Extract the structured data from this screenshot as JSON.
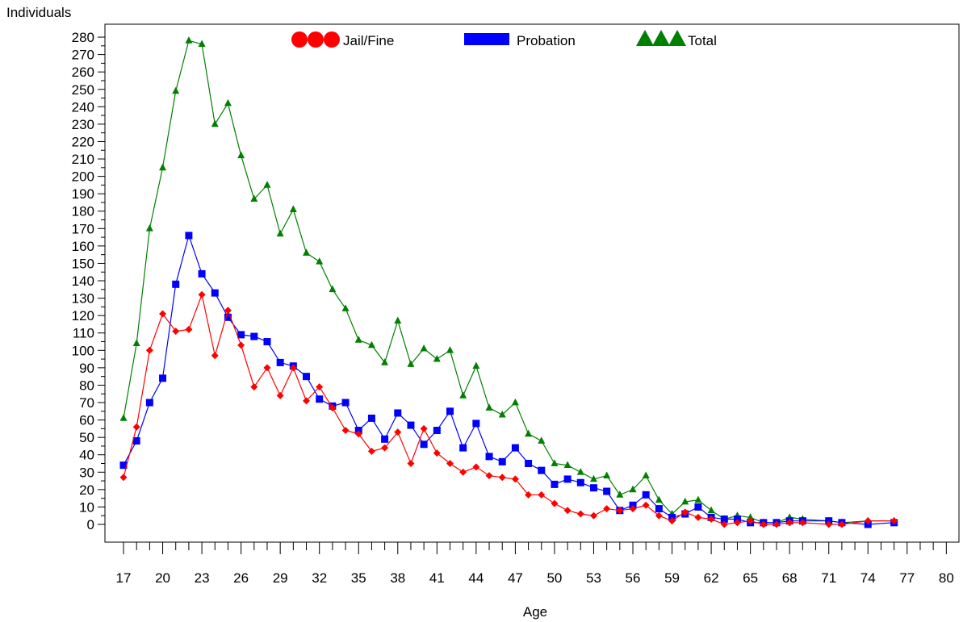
{
  "chart_data": {
    "type": "line",
    "title": "",
    "xlabel": "Age",
    "ylabel": "Individuals",
    "xlim": [
      17,
      80
    ],
    "ylim": [
      0,
      280
    ],
    "y_ticks": [
      0,
      10,
      20,
      30,
      40,
      50,
      60,
      70,
      80,
      90,
      100,
      110,
      120,
      130,
      140,
      150,
      160,
      170,
      180,
      190,
      200,
      210,
      220,
      230,
      240,
      250,
      260,
      270,
      280
    ],
    "x_ticks": [
      17,
      20,
      23,
      26,
      29,
      32,
      35,
      38,
      41,
      44,
      47,
      50,
      53,
      56,
      59,
      62,
      65,
      68,
      71,
      74,
      77,
      80
    ],
    "grid": false,
    "legend_position": "top",
    "series": [
      {
        "name": "Jail/Fine",
        "color": "#ff0000",
        "marker": "diamond",
        "points": [
          [
            17,
            27
          ],
          [
            18,
            56
          ],
          [
            19,
            100
          ],
          [
            20,
            121
          ],
          [
            21,
            111
          ],
          [
            22,
            112
          ],
          [
            23,
            132
          ],
          [
            24,
            97
          ],
          [
            25,
            123
          ],
          [
            26,
            103
          ],
          [
            27,
            79
          ],
          [
            28,
            90
          ],
          [
            29,
            74
          ],
          [
            30,
            90
          ],
          [
            31,
            71
          ],
          [
            32,
            79
          ],
          [
            33,
            67
          ],
          [
            34,
            54
          ],
          [
            35,
            52
          ],
          [
            36,
            42
          ],
          [
            37,
            44
          ],
          [
            38,
            53
          ],
          [
            39,
            35
          ],
          [
            40,
            55
          ],
          [
            41,
            41
          ],
          [
            42,
            35
          ],
          [
            43,
            30
          ],
          [
            44,
            33
          ],
          [
            45,
            28
          ],
          [
            46,
            27
          ],
          [
            47,
            26
          ],
          [
            48,
            17
          ],
          [
            49,
            17
          ],
          [
            50,
            12
          ],
          [
            51,
            8
          ],
          [
            52,
            6
          ],
          [
            53,
            5
          ],
          [
            54,
            9
          ],
          [
            55,
            8
          ],
          [
            56,
            9
          ],
          [
            57,
            11
          ],
          [
            58,
            5
          ],
          [
            59,
            2
          ],
          [
            60,
            7
          ],
          [
            61,
            4
          ],
          [
            62,
            3
          ],
          [
            63,
            0
          ],
          [
            64,
            1
          ],
          [
            65,
            2
          ],
          [
            66,
            0
          ],
          [
            67,
            0
          ],
          [
            68,
            1
          ],
          [
            69,
            1
          ],
          [
            71,
            0
          ],
          [
            72,
            0
          ],
          [
            74,
            2
          ],
          [
            76,
            2
          ]
        ]
      },
      {
        "name": "Probation",
        "color": "#0000ff",
        "marker": "square",
        "points": [
          [
            17,
            34
          ],
          [
            18,
            48
          ],
          [
            19,
            70
          ],
          [
            20,
            84
          ],
          [
            21,
            138
          ],
          [
            22,
            166
          ],
          [
            23,
            144
          ],
          [
            24,
            133
          ],
          [
            25,
            119
          ],
          [
            26,
            109
          ],
          [
            27,
            108
          ],
          [
            28,
            105
          ],
          [
            29,
            93
          ],
          [
            30,
            91
          ],
          [
            31,
            85
          ],
          [
            32,
            72
          ],
          [
            33,
            68
          ],
          [
            34,
            70
          ],
          [
            35,
            54
          ],
          [
            36,
            61
          ],
          [
            37,
            49
          ],
          [
            38,
            64
          ],
          [
            39,
            57
          ],
          [
            40,
            46
          ],
          [
            41,
            54
          ],
          [
            42,
            65
          ],
          [
            43,
            44
          ],
          [
            44,
            58
          ],
          [
            45,
            39
          ],
          [
            46,
            36
          ],
          [
            47,
            44
          ],
          [
            48,
            35
          ],
          [
            49,
            31
          ],
          [
            50,
            23
          ],
          [
            51,
            26
          ],
          [
            52,
            24
          ],
          [
            53,
            21
          ],
          [
            54,
            19
          ],
          [
            55,
            8
          ],
          [
            56,
            11
          ],
          [
            57,
            17
          ],
          [
            58,
            9
          ],
          [
            59,
            4
          ],
          [
            60,
            6
          ],
          [
            61,
            10
          ],
          [
            62,
            4
          ],
          [
            63,
            3
          ],
          [
            64,
            3
          ],
          [
            65,
            1
          ],
          [
            66,
            1
          ],
          [
            67,
            1
          ],
          [
            68,
            2
          ],
          [
            69,
            2
          ],
          [
            71,
            2
          ],
          [
            72,
            1
          ],
          [
            74,
            0
          ],
          [
            76,
            1
          ]
        ]
      },
      {
        "name": "Total",
        "color": "#008000",
        "marker": "triangle",
        "points": [
          [
            17,
            61
          ],
          [
            18,
            104
          ],
          [
            19,
            170
          ],
          [
            20,
            205
          ],
          [
            21,
            249
          ],
          [
            22,
            278
          ],
          [
            23,
            276
          ],
          [
            24,
            230
          ],
          [
            25,
            242
          ],
          [
            26,
            212
          ],
          [
            27,
            187
          ],
          [
            28,
            195
          ],
          [
            29,
            167
          ],
          [
            30,
            181
          ],
          [
            31,
            156
          ],
          [
            32,
            151
          ],
          [
            33,
            135
          ],
          [
            34,
            124
          ],
          [
            35,
            106
          ],
          [
            36,
            103
          ],
          [
            37,
            93
          ],
          [
            38,
            117
          ],
          [
            39,
            92
          ],
          [
            40,
            101
          ],
          [
            41,
            95
          ],
          [
            42,
            100
          ],
          [
            43,
            74
          ],
          [
            44,
            91
          ],
          [
            45,
            67
          ],
          [
            46,
            63
          ],
          [
            47,
            70
          ],
          [
            48,
            52
          ],
          [
            49,
            48
          ],
          [
            50,
            35
          ],
          [
            51,
            34
          ],
          [
            52,
            30
          ],
          [
            53,
            26
          ],
          [
            54,
            28
          ],
          [
            55,
            17
          ],
          [
            56,
            20
          ],
          [
            57,
            28
          ],
          [
            58,
            14
          ],
          [
            59,
            6
          ],
          [
            60,
            13
          ],
          [
            61,
            14
          ],
          [
            62,
            8
          ],
          [
            63,
            3
          ],
          [
            64,
            5
          ],
          [
            65,
            4
          ],
          [
            66,
            1
          ],
          [
            67,
            1
          ],
          [
            68,
            4
          ],
          [
            69,
            3
          ],
          [
            71,
            2
          ],
          [
            72,
            1
          ],
          [
            74,
            2
          ],
          [
            76,
            2
          ]
        ]
      }
    ]
  }
}
